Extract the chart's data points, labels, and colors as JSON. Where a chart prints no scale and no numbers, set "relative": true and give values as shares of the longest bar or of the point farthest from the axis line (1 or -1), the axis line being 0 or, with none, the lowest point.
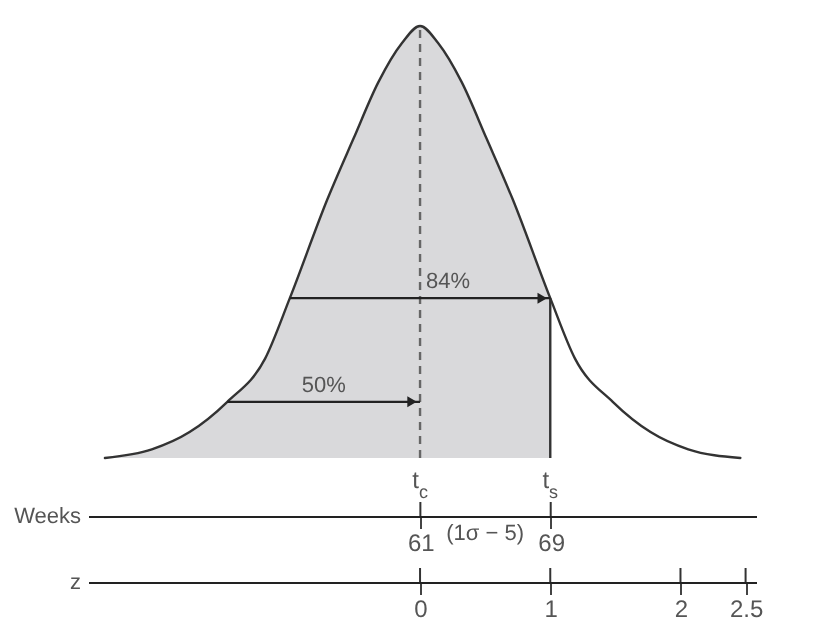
{
  "chart_data": {
    "type": "line",
    "relative": true,
    "grid": false,
    "xlabel": "z",
    "x2label": "Weeks",
    "xlim": [
      -2.55,
      2.58
    ],
    "xticks": [
      0,
      1,
      2,
      2.5
    ],
    "x2lim": [
      40.6,
      81.6
    ],
    "x2ticks": [
      61,
      69
    ],
    "series": [
      {
        "type": "area",
        "color": "#d9d9db",
        "x": [
          -2.42,
          -2.06,
          -1.77,
          -1.48,
          -1.19,
          -1,
          -0.71,
          -0.51,
          -0.32,
          -0.14,
          0,
          0.14,
          0.32,
          0.51,
          0.71,
          1
        ],
        "values": [
          0,
          0.02,
          0.06,
          0.13,
          0.23,
          0.37,
          0.6,
          0.74,
          0.87,
          0.96,
          1,
          0.96,
          0.87,
          0.74,
          0.6,
          0.37
        ]
      },
      {
        "color": "#333333",
        "x": [
          -2.42,
          -2.06,
          -1.77,
          -1.48,
          -1.19,
          -1,
          -0.71,
          -0.51,
          -0.32,
          -0.14,
          0,
          0.14,
          0.32,
          0.51,
          0.71,
          1,
          1.19,
          1.48,
          1.77,
          2.06,
          2.46
        ],
        "values": [
          0,
          0.02,
          0.06,
          0.13,
          0.23,
          0.37,
          0.6,
          0.74,
          0.87,
          0.96,
          1,
          0.96,
          0.87,
          0.74,
          0.6,
          0.37,
          0.23,
          0.13,
          0.06,
          0.02,
          0
        ]
      }
    ],
    "ref_lines": [
      {
        "axis": "x",
        "value": 0,
        "label": "t$_{c}$",
        "line_style": "dashed",
        "color": "#666666"
      },
      {
        "axis": "x",
        "value": 1,
        "label": "t$_{s}$",
        "line_style": "solid",
        "color": "#333333"
      }
    ],
    "annotations": [
      "50%",
      "84%",
      "(1σ − 5)"
    ]
  }
}
